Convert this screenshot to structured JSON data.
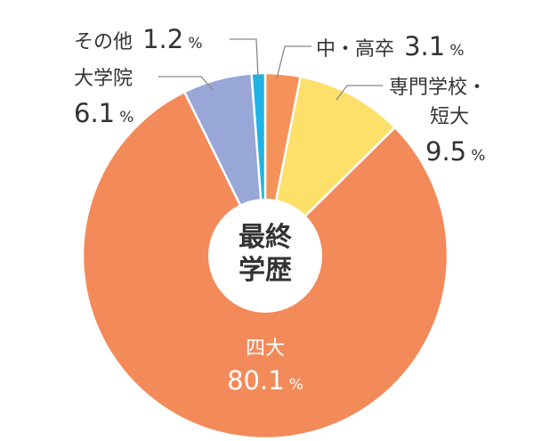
{
  "chart_data": {
    "type": "pie",
    "donut": true,
    "title": "",
    "center_label": [
      "最終",
      "学歴"
    ],
    "unit": "%",
    "slices": [
      {
        "label": "中・高卒",
        "value": 3.1,
        "value_text": "3.1",
        "color": "#f5925a"
      },
      {
        "label": "専門学校・短大",
        "value": 9.5,
        "value_text": "9.5",
        "color": "#fde06a"
      },
      {
        "label": "四大",
        "value": 80.1,
        "value_text": "80.1",
        "color": "#f38a5a"
      },
      {
        "label": "大学院",
        "value": 6.1,
        "value_text": "6.1",
        "color": "#98a6d8"
      },
      {
        "label": "その他",
        "value": 1.2,
        "value_text": "1.2",
        "color": "#1fb3e8"
      }
    ],
    "legend": "none"
  }
}
